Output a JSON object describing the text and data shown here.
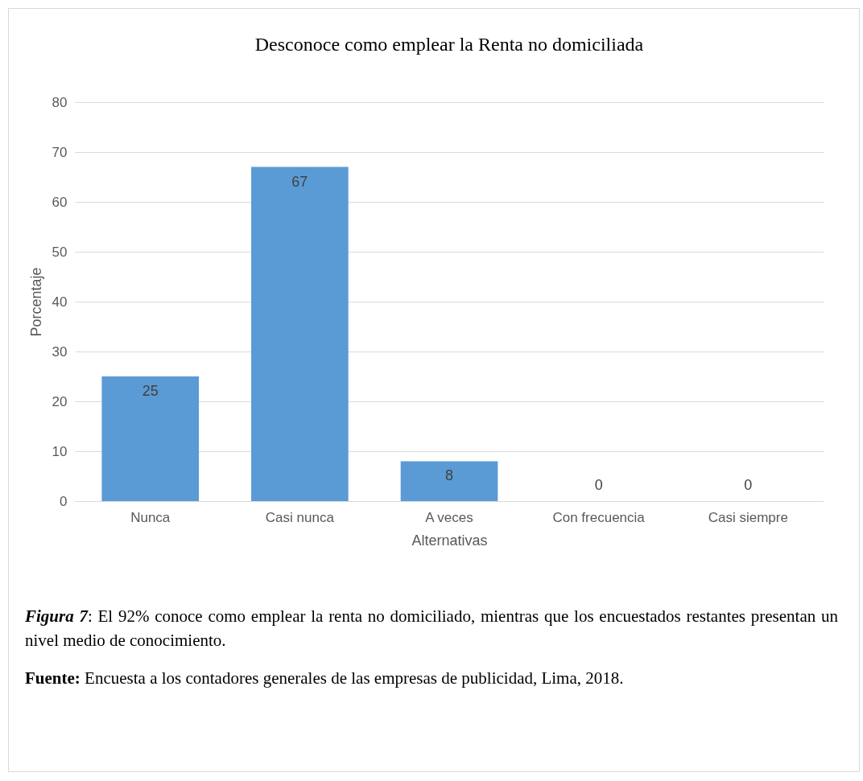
{
  "chart_data": {
    "type": "bar",
    "title": "Desconoce como emplear la Renta no domiciliada",
    "xlabel": "Alternativas",
    "ylabel": "Porcentaje",
    "categories": [
      "Nunca",
      "Casi nunca",
      "A veces",
      "Con frecuencia",
      "Casi siempre"
    ],
    "values": [
      25,
      67,
      8,
      0,
      0
    ],
    "color": "#5b9bd5",
    "ylim": [
      0,
      80
    ],
    "yticks": [
      0,
      10,
      20,
      30,
      40,
      50,
      60,
      70,
      80
    ],
    "grid": "y",
    "data_labels": true,
    "annotations": [
      "Figura 7: El 92% conoce como emplear la renta no domiciliado, mientras que los encuestados restantes presentan un nivel medio de conocimiento.",
      "Fuente: Encuesta a los contadores generales de las empresas de publicidad, Lima, 2018."
    ]
  }
}
